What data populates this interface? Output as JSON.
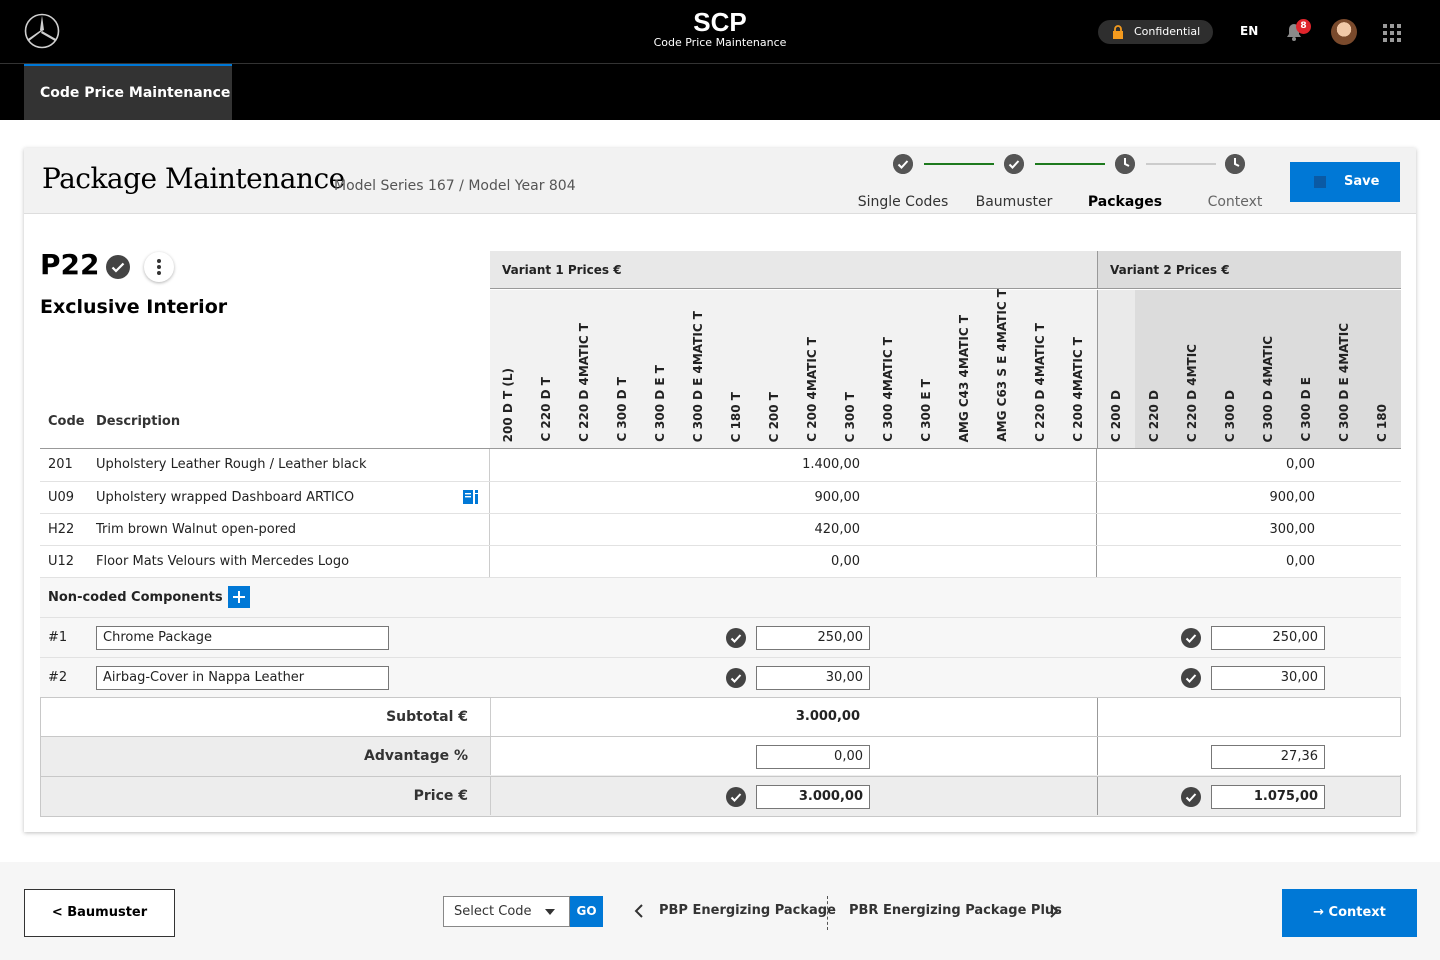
{
  "header": {
    "app_title": "SCP",
    "app_subtitle": "Code Price Maintenance",
    "confidential_label": "Confidential",
    "language": "EN",
    "notification_count": "8"
  },
  "nav": {
    "active_tab": "Code Price Maintenance"
  },
  "page": {
    "title": "Package Maintenance",
    "subtitle": "Model Series 167 / Model Year 804",
    "save_label": "Save",
    "steps": [
      {
        "label": "Single Codes",
        "status": "done"
      },
      {
        "label": "Baumuster",
        "status": "done"
      },
      {
        "label": "Packages",
        "status": "active"
      },
      {
        "label": "Context",
        "status": "pending"
      }
    ]
  },
  "package": {
    "code": "P22",
    "name": "Exclusive Interior",
    "col_code": "Code",
    "col_description": "Description"
  },
  "variant1": {
    "title": "Variant 1 Prices €",
    "columns": [
      "200 D T (L)",
      "C 220 D T",
      "C 220 D 4MATIC T",
      "C 300 D T",
      "C 300 D E T",
      "C 300 D E 4MATIC T",
      "C 180 T",
      "C 200 T",
      "C 200 4MATIC T",
      "C 300 T",
      "C 300 4MATIC T",
      "C 300 E T",
      "AMG C43 4MATIC T",
      "AMG C63 S E 4MATIC T",
      "C 220 D 4MATIC T",
      "C 200 4MATIC T"
    ]
  },
  "variant2": {
    "title": "Variant 2 Prices €",
    "columns": [
      "C 200 D",
      "C 220 D",
      "C 220 D 4MTIC",
      "C 300 D",
      "C 300 D 4MATIC",
      "C 300 D E",
      "C 300 D E 4MATIC",
      "C 180"
    ]
  },
  "codes": [
    {
      "code": "201",
      "description": "Upholstery Leather Rough / Leather black",
      "v1": "1.400,00",
      "v2": "0,00"
    },
    {
      "code": "U09",
      "description": "Upholstery wrapped Dashboard ARTICO",
      "v1": "900,00",
      "v2": "900,00"
    },
    {
      "code": "H22",
      "description": "Trim brown Walnut open-pored",
      "v1": "420,00",
      "v2": "300,00"
    },
    {
      "code": "U12",
      "description": "Floor Mats Velours with Mercedes Logo",
      "v1": "0,00",
      "v2": "0,00"
    }
  ],
  "noncoded": {
    "label": "Non-coded Components",
    "items": [
      {
        "id": "#1",
        "name": "Chrome Package",
        "v1": "250,00",
        "v2": "250,00"
      },
      {
        "id": "#2",
        "name": "Airbag-Cover in Nappa Leather",
        "v1": "30,00",
        "v2": "30,00"
      }
    ]
  },
  "summary": {
    "subtotal_label": "Subtotal €",
    "subtotal_v1": "3.000,00",
    "advantage_label": "Advantage %",
    "advantage_v1": "0,00",
    "advantage_v2": "27,36",
    "price_label": "Price €",
    "price_v1": "3.000,00",
    "price_v2": "1.075,00"
  },
  "footer": {
    "back_label": "< Baumuster",
    "select_placeholder": "Select Code",
    "go_label": "GO",
    "prev_package": "PBP Energizing Package",
    "next_package": "PBR Energizing Package Plus",
    "context_label": "→ Context"
  },
  "colors": {
    "accent": "#0078d6",
    "step_done": "#1e7a1e",
    "badge": "#e0242b"
  }
}
